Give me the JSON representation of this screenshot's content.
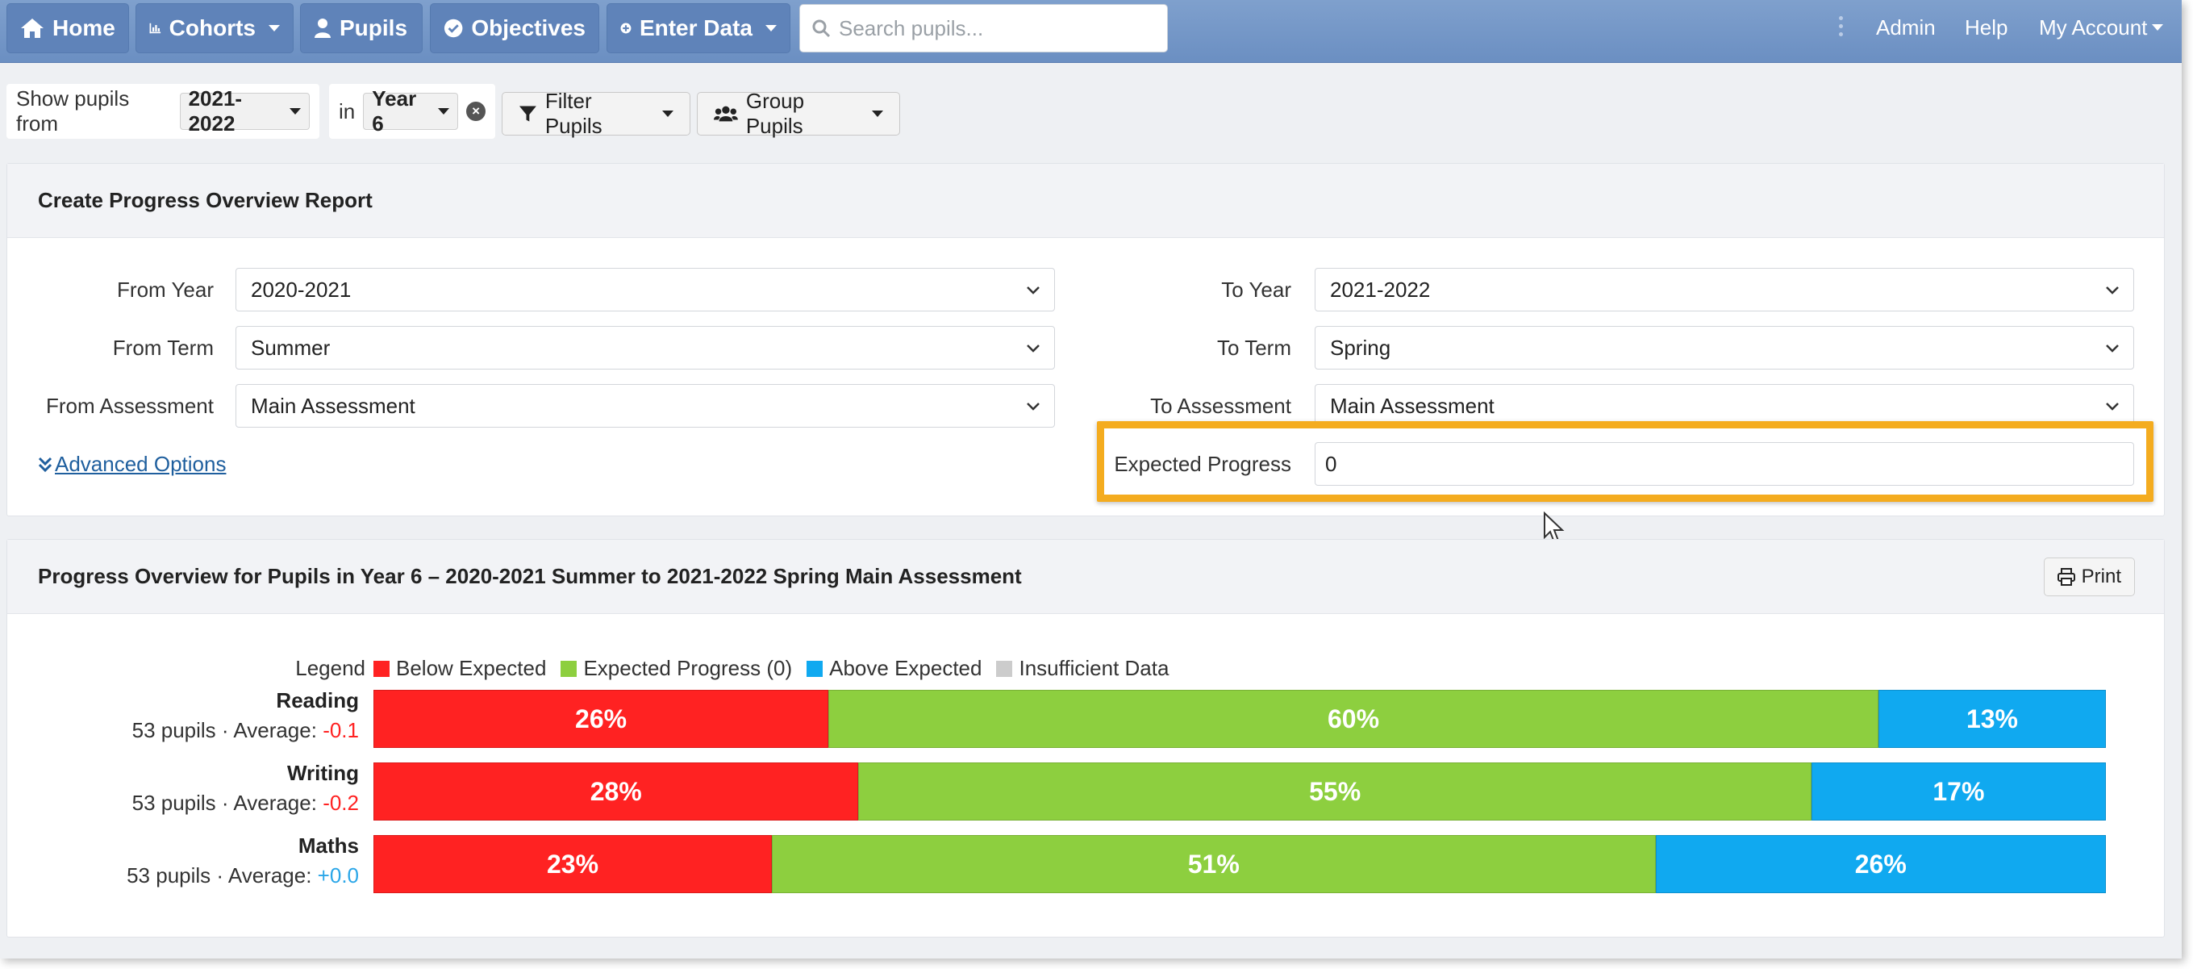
{
  "nav": {
    "home": "Home",
    "cohorts": "Cohorts",
    "pupils": "Pupils",
    "objectives": "Objectives",
    "enter_data": "Enter Data",
    "search_placeholder": "Search pupils...",
    "admin": "Admin",
    "help": "Help",
    "my_account": "My Account"
  },
  "filter_bar": {
    "show_label": "Show pupils from",
    "year_value": "2021-2022",
    "in_label": "in",
    "group_value": "Year 6",
    "filter_button": "Filter Pupils",
    "group_button": "Group Pupils"
  },
  "create_panel": {
    "title": "Create Progress Overview Report",
    "from_year_label": "From Year",
    "from_year_value": "2020-2021",
    "from_term_label": "From Term",
    "from_term_value": "Summer",
    "from_assessment_label": "From Assessment",
    "from_assessment_value": "Main Assessment",
    "to_year_label": "To Year",
    "to_year_value": "2021-2022",
    "to_term_label": "To Term",
    "to_term_value": "Spring",
    "to_assessment_label": "To Assessment",
    "to_assessment_value": "Main Assessment",
    "expected_progress_label": "Expected Progress",
    "expected_progress_value": "0",
    "advanced_options": "Advanced Options"
  },
  "overview_panel": {
    "title": "Progress Overview for Pupils in Year 6 – 2020-2021 Summer to 2021-2022 Spring Main Assessment",
    "print_button": "Print",
    "legend_title": "Legend",
    "legend": [
      {
        "label": "Below Expected",
        "color": "#ff2222"
      },
      {
        "label": "Expected Progress (0)",
        "color": "#8dcf3f"
      },
      {
        "label": "Above Expected",
        "color": "#10a9f0"
      },
      {
        "label": "Insufficient Data",
        "color": "#cccccc"
      }
    ]
  },
  "chart_data": {
    "type": "bar",
    "stacked": true,
    "orientation": "horizontal",
    "categories": [
      "Reading",
      "Writing",
      "Maths"
    ],
    "series": [
      {
        "name": "Below Expected",
        "values": [
          26,
          28,
          23
        ],
        "labels": [
          "26%",
          "28%",
          "23%"
        ]
      },
      {
        "name": "Expected Progress (0)",
        "values": [
          60,
          55,
          51
        ],
        "labels": [
          "60%",
          "55%",
          "51%"
        ]
      },
      {
        "name": "Above Expected",
        "values": [
          13,
          17,
          26
        ],
        "labels": [
          "13%",
          "17%",
          "26%"
        ]
      }
    ],
    "rows": [
      {
        "subject": "Reading",
        "pupils": "53 pupils · Average: ",
        "average": "-0.1",
        "average_color": "#ff2222"
      },
      {
        "subject": "Writing",
        "pupils": "53 pupils · Average: ",
        "average": "-0.2",
        "average_color": "#ff2222"
      },
      {
        "subject": "Maths",
        "pupils": "53 pupils · Average: ",
        "average": "+0.0",
        "average_color": "#2aa6e8"
      }
    ]
  }
}
